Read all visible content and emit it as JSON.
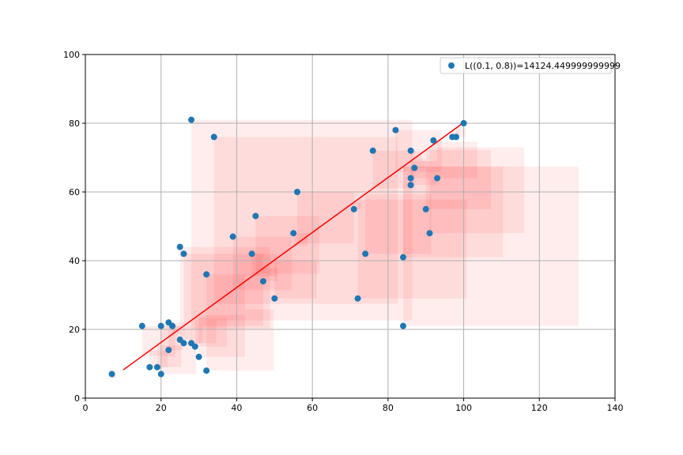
{
  "chart_data": {
    "type": "scatter",
    "title": "",
    "xlabel": "",
    "ylabel": "",
    "xlim": [
      0,
      140
    ],
    "ylim": [
      0,
      100
    ],
    "xticks": [
      0,
      20,
      40,
      60,
      80,
      100,
      120,
      140
    ],
    "yticks": [
      0,
      20,
      40,
      60,
      80,
      100
    ],
    "grid": true,
    "legend_position": "top-right",
    "legend_label": "L((0.1, 0.8))=14124.449999999999",
    "colors": {
      "points": "#1f77b4",
      "line": "#ff0000",
      "squares": "#ff0000"
    },
    "points": [
      [
        7,
        7
      ],
      [
        15,
        21
      ],
      [
        17,
        9
      ],
      [
        19,
        9
      ],
      [
        20,
        7
      ],
      [
        20,
        21
      ],
      [
        22,
        14
      ],
      [
        22,
        22
      ],
      [
        23,
        21
      ],
      [
        25,
        17
      ],
      [
        25,
        44
      ],
      [
        26,
        16
      ],
      [
        26,
        42
      ],
      [
        28,
        16
      ],
      [
        28,
        81
      ],
      [
        29,
        15
      ],
      [
        30,
        12
      ],
      [
        32,
        8
      ],
      [
        32,
        36
      ],
      [
        34,
        76
      ],
      [
        39,
        47
      ],
      [
        44,
        42
      ],
      [
        45,
        53
      ],
      [
        47,
        34
      ],
      [
        50,
        29
      ],
      [
        55,
        48
      ],
      [
        56,
        60
      ],
      [
        71,
        55
      ],
      [
        72,
        29
      ],
      [
        74,
        42
      ],
      [
        76,
        72
      ],
      [
        82,
        78
      ],
      [
        84,
        41
      ],
      [
        84,
        21
      ],
      [
        86,
        72
      ],
      [
        86,
        64
      ],
      [
        86,
        62
      ],
      [
        87,
        67
      ],
      [
        90,
        55
      ],
      [
        91,
        48
      ],
      [
        92,
        75
      ],
      [
        93,
        64
      ],
      [
        97,
        76
      ],
      [
        98,
        76
      ],
      [
        100,
        80
      ]
    ],
    "fit_line": {
      "x": [
        10,
        100
      ],
      "y": [
        8.2,
        80.2
      ]
    }
  }
}
